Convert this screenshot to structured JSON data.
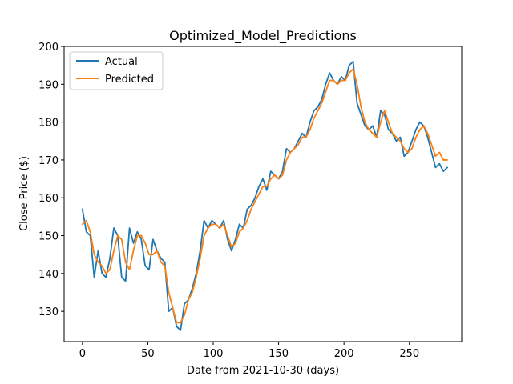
{
  "chart_data": {
    "type": "line",
    "title": "Optimized_Model_Predictions",
    "xlabel": "Date from 2021-10-30 (days)",
    "ylabel": "Close Price ($)",
    "xlim": [
      -14,
      290
    ],
    "ylim": [
      122,
      200
    ],
    "xticks": [
      0,
      50,
      100,
      150,
      200,
      250
    ],
    "yticks": [
      130,
      140,
      150,
      160,
      170,
      180,
      190,
      200
    ],
    "grid": false,
    "legend_position": "top-left",
    "series": [
      {
        "name": "Actual",
        "color": "#1f77b4",
        "x": [
          0,
          3,
          6,
          9,
          12,
          15,
          18,
          21,
          24,
          27,
          30,
          33,
          36,
          39,
          42,
          45,
          48,
          51,
          54,
          57,
          60,
          63,
          66,
          69,
          72,
          75,
          78,
          81,
          84,
          87,
          90,
          93,
          96,
          99,
          102,
          105,
          108,
          111,
          114,
          117,
          120,
          123,
          126,
          129,
          132,
          135,
          138,
          141,
          144,
          147,
          150,
          153,
          156,
          159,
          162,
          165,
          168,
          171,
          174,
          177,
          180,
          183,
          186,
          189,
          192,
          195,
          198,
          201,
          204,
          207,
          210,
          213,
          216,
          219,
          222,
          225,
          228,
          231,
          234,
          237,
          240,
          243,
          246,
          249,
          252,
          255,
          258,
          261,
          264,
          267,
          270,
          273,
          276,
          279
        ],
        "values": [
          157,
          151,
          150,
          139,
          146,
          140,
          139,
          144,
          152,
          150,
          139,
          138,
          152,
          148,
          151,
          149,
          142,
          141,
          149,
          146,
          144,
          143,
          130,
          131,
          126,
          125,
          132,
          133,
          136,
          140,
          146,
          154,
          152,
          154,
          153,
          152,
          154,
          149,
          146,
          149,
          153,
          152,
          157,
          158,
          160,
          163,
          165,
          162,
          167,
          166,
          165,
          167,
          173,
          172,
          173,
          175,
          177,
          176,
          180,
          183,
          184,
          186,
          190,
          193,
          191,
          190,
          192,
          191,
          195,
          196,
          185,
          182,
          179,
          178,
          179,
          176,
          183,
          182,
          178,
          177,
          175,
          176,
          171,
          172,
          175,
          178,
          180,
          179,
          176,
          172,
          168,
          169,
          167,
          168
        ]
      },
      {
        "name": "Predicted",
        "color": "#ff7f0e",
        "x": [
          0,
          3,
          6,
          9,
          12,
          15,
          18,
          21,
          24,
          27,
          30,
          33,
          36,
          39,
          42,
          45,
          48,
          51,
          54,
          57,
          60,
          63,
          66,
          69,
          72,
          75,
          78,
          81,
          84,
          87,
          90,
          93,
          96,
          99,
          102,
          105,
          108,
          111,
          114,
          117,
          120,
          123,
          126,
          129,
          132,
          135,
          138,
          141,
          144,
          147,
          150,
          153,
          156,
          159,
          162,
          165,
          168,
          171,
          174,
          177,
          180,
          183,
          186,
          189,
          192,
          195,
          198,
          201,
          204,
          207,
          210,
          213,
          216,
          219,
          222,
          225,
          228,
          231,
          234,
          237,
          240,
          243,
          246,
          249,
          252,
          255,
          258,
          261,
          264,
          267,
          270,
          273,
          276,
          279
        ],
        "values": [
          153,
          154,
          151,
          145,
          143,
          142,
          140,
          141,
          146,
          150,
          149,
          143,
          141,
          146,
          150,
          150,
          148,
          145,
          145,
          146,
          143,
          142,
          135,
          131,
          127,
          127,
          129,
          133,
          135,
          139,
          144,
          150,
          152,
          153,
          153,
          152,
          153,
          150,
          147,
          148,
          151,
          152,
          154,
          157,
          159,
          161,
          163,
          163,
          165,
          166,
          165,
          166,
          170,
          172,
          173,
          174,
          176,
          176,
          178,
          181,
          183,
          185,
          188,
          191,
          191,
          190,
          191,
          191,
          193,
          194,
          190,
          184,
          180,
          178,
          177,
          176,
          180,
          183,
          180,
          177,
          176,
          175,
          173,
          172,
          173,
          176,
          178,
          179,
          177,
          174,
          171,
          172,
          170,
          170
        ]
      }
    ]
  }
}
